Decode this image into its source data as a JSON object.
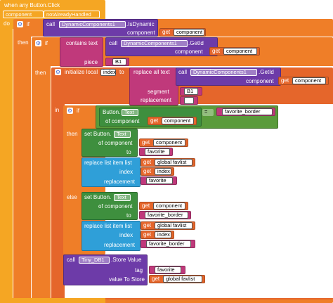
{
  "colors": {
    "event": "#f5a623",
    "control": "#ef7e28",
    "procedure": "#6d3ba8",
    "text": "#c0397b",
    "logic": "#5a9b3b",
    "list": "#2f9fd8",
    "variable": "#e5662b",
    "component_green": "#3e8f3e",
    "tinydb": "#6d3ba8"
  },
  "event_block": {
    "header": "when any Button.Click",
    "param_component": "component",
    "param_not_handled": "notAlreadyHandled",
    "do_label": "do"
  },
  "if1": {
    "if_label": "if",
    "then_label": "then"
  },
  "call_isdynamic": {
    "call_label": "call",
    "method": "DynamicComponents1",
    "method_name": ".IsDynamic",
    "component_label": "component",
    "get_label": "get",
    "get_value": "component"
  },
  "if2": {
    "if_label": "if",
    "then_label": "then"
  },
  "contains": {
    "label": "contains text",
    "piece_label": "piece",
    "piece_value": "B1"
  },
  "call_getid1": {
    "call_label": "call",
    "method": "DynamicComponents1",
    "method_name": ".GetId",
    "component_label": "component",
    "get_label": "get",
    "get_value": "component"
  },
  "init_local": {
    "label": "initialize local",
    "var_name": "index",
    "to_label": "to",
    "in_label": "in",
    "replace_all": "replace all text",
    "segment_label": "segment",
    "segment_value": "B1",
    "replacement_label": "replacement",
    "replacement_value": ""
  },
  "call_getid2": {
    "call_label": "call",
    "method": "DynamicComponents1",
    "method_name": ".GetId",
    "component_label": "component",
    "get_label": "get",
    "get_value": "component"
  },
  "if3": {
    "if_label": "if",
    "then_label": "then",
    "else_label": "else"
  },
  "compare": {
    "button_prop": "Button.",
    "prop_name": "Text",
    "of_component": "of component",
    "get_label": "get",
    "get_value": "component",
    "op": "=",
    "compare_value": "favorite_border"
  },
  "then_branch": {
    "set_label": "set Button.",
    "set_prop": "Text",
    "of_component": "of component",
    "get_label": "get",
    "get_value": "component",
    "to_label": "to",
    "to_value": "favorite",
    "replace_list": "replace list item  list",
    "get_list_value": "global favlist",
    "index_label": "index",
    "index_value": "index",
    "replacement_label": "replacement",
    "replacement_value": "favorite"
  },
  "else_branch": {
    "set_label": "set Button.",
    "set_prop": "Text",
    "of_component": "of component",
    "get_label": "get",
    "get_value": "component",
    "to_label": "to",
    "to_value": "favorite_border",
    "replace_list": "replace list item  list",
    "get_list_value": "global favlist",
    "index_label": "index",
    "index_value": "index",
    "replacement_label": "replacement",
    "replacement_value": "favorite_border"
  },
  "store": {
    "call_label": "call",
    "db_name": "Tiny_DB1",
    "method": ".Store Value",
    "tag_label": "tag",
    "tag_value": "favorite",
    "value_label": "value To Store",
    "get_label": "get",
    "get_value": "global favlist"
  }
}
